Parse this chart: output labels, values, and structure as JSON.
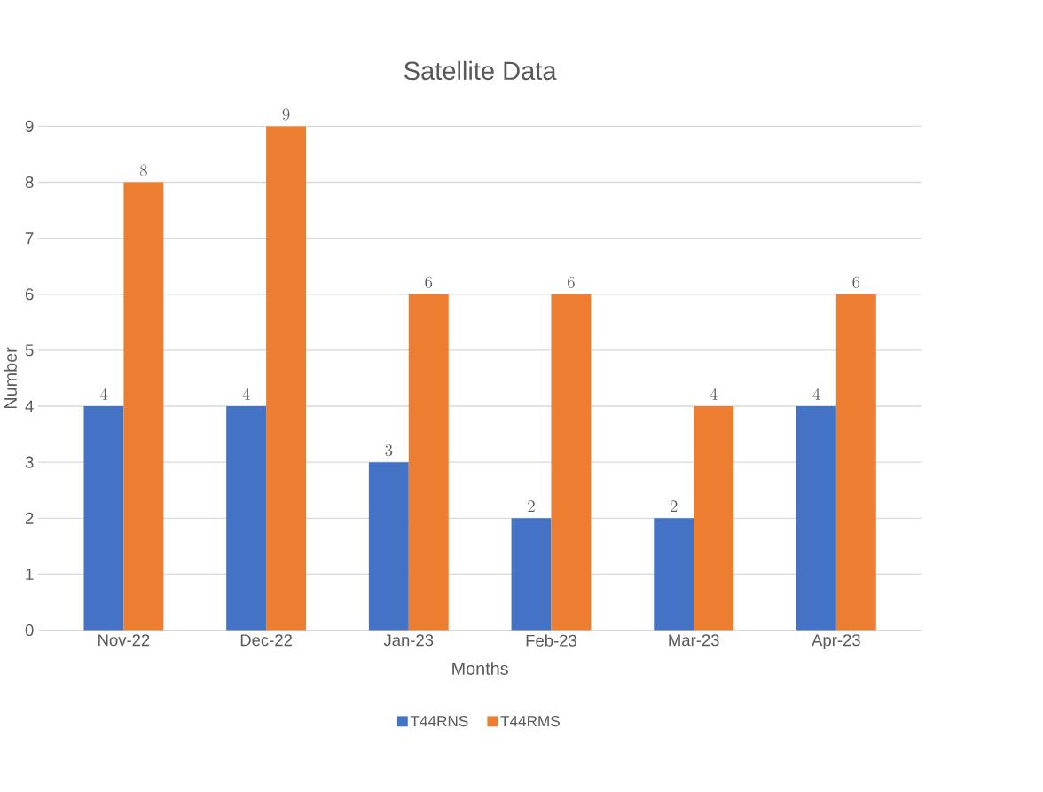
{
  "chart_data": {
    "type": "bar",
    "title": "Satellite Data",
    "xlabel": "Months",
    "ylabel": "Number",
    "categories": [
      "Nov-22",
      "Dec-22",
      "Jan-23",
      "Feb-23",
      "Mar-23",
      "Apr-23"
    ],
    "series": [
      {
        "name": "T44RNS",
        "color": "#4472c4",
        "values": [
          4,
          4,
          3,
          2,
          2,
          4
        ]
      },
      {
        "name": "T44RMS",
        "color": "#ed7d31",
        "values": [
          8,
          9,
          6,
          6,
          4,
          6
        ]
      }
    ],
    "ylim": [
      0,
      9
    ],
    "yticks": [
      0,
      1,
      2,
      3,
      4,
      5,
      6,
      7,
      8,
      9
    ],
    "grid": "y",
    "legend": "bottom",
    "data_labels": true
  }
}
